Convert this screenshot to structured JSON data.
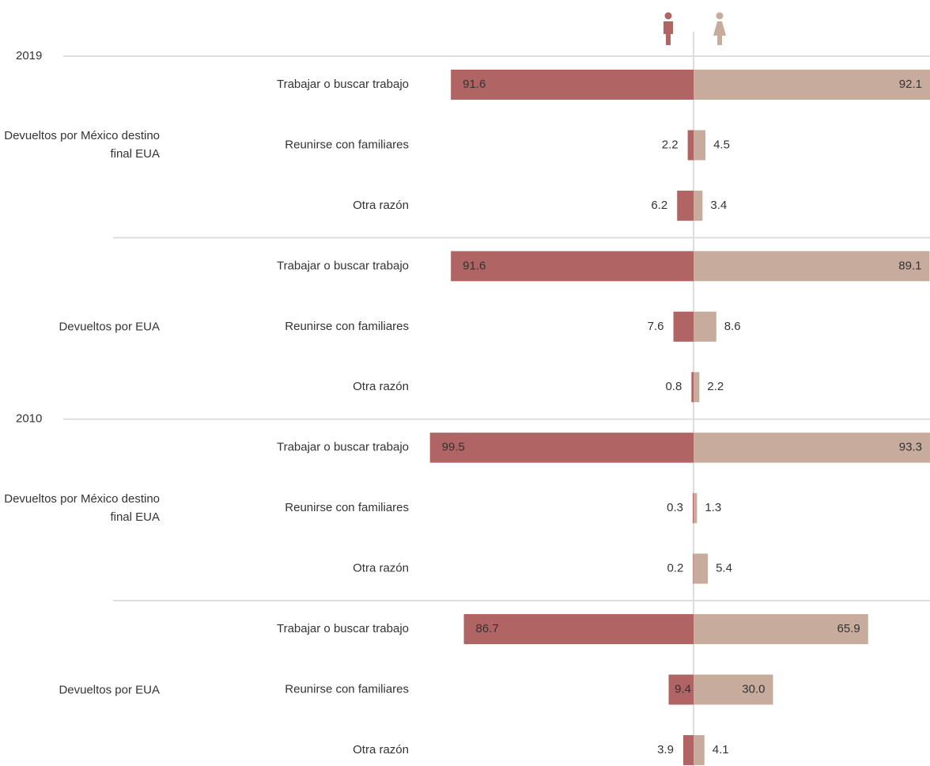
{
  "chart_data": {
    "type": "butterfly",
    "series": [
      {
        "color": "#b06464",
        "values": [
          91.6,
          2.2,
          6.2,
          91.6,
          7.6,
          0.8,
          99.5,
          0.3,
          0.2,
          86.7,
          9.4,
          3.9
        ],
        "value_labels": [
          "91.6",
          "2.2",
          "6.2",
          "91.6",
          "7.6",
          "0.8",
          "99.5",
          "0.3",
          "0.2",
          "86.7",
          "9.4",
          "3.9"
        ]
      },
      {
        "color": "#c7ab9d",
        "values": [
          92.1,
          4.5,
          3.4,
          89.1,
          8.6,
          2.2,
          93.3,
          1.3,
          5.4,
          65.9,
          30.0,
          4.1
        ],
        "value_labels": [
          "92.1",
          "4.5",
          "3.4",
          "89.1",
          "8.6",
          "2.2",
          "93.3",
          "1.3",
          "5.4",
          "65.9",
          "30.0",
          "4.1"
        ]
      }
    ],
    "panels": [
      {
        "year": "2019",
        "groups": [
          {
            "name": "Devueltos por México destino final EUA",
            "categories": [
              "Trabajar o buscar trabajo",
              "Reunirse con familiares",
              "Otra razón"
            ]
          },
          {
            "name": "Devueltos por EUA",
            "categories": [
              "Trabajar o buscar trabajo",
              "Reunirse con familiares",
              "Otra razón"
            ]
          }
        ]
      },
      {
        "year": "2010",
        "groups": [
          {
            "name": "Devueltos por México destino final EUA",
            "categories": [
              "Trabajar o buscar trabajo",
              "Reunirse con familiares",
              "Otra razón"
            ]
          },
          {
            "name": "Devueltos por EUA",
            "categories": [
              "Trabajar o buscar trabajo",
              "Reunirse con familiares",
              "Otra razón"
            ]
          }
        ]
      }
    ]
  }
}
